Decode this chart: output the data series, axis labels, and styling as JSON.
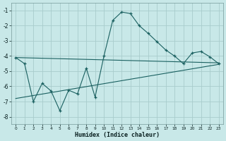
{
  "xlabel": "Humidex (Indice chaleur)",
  "bg_color": "#c8e8e8",
  "grid_color": "#a8cccc",
  "line_color": "#1a6060",
  "ylim": [
    -8.5,
    -0.5
  ],
  "xlim": [
    -0.5,
    23.5
  ],
  "yticks": [
    -8,
    -7,
    -6,
    -5,
    -4,
    -3,
    -2,
    -1
  ],
  "xtick_labels": [
    "0",
    "1",
    "2",
    "3",
    "4",
    "5",
    "6",
    "7",
    "8",
    "9",
    "10",
    "11",
    "12",
    "13",
    "14",
    "15",
    "16",
    "17",
    "18",
    "19",
    "20",
    "21",
    "22",
    "23"
  ],
  "main_x": [
    0,
    1,
    2,
    3,
    4,
    5,
    6,
    7,
    8,
    9,
    10,
    11,
    12,
    13,
    14,
    15,
    16,
    17,
    18,
    19,
    20,
    21,
    22,
    23
  ],
  "main_y": [
    -4.1,
    -4.5,
    -7.0,
    -5.8,
    -6.3,
    -7.6,
    -6.25,
    -6.5,
    -4.8,
    -6.7,
    -4.0,
    -1.65,
    -1.1,
    -1.2,
    -2.0,
    -2.5,
    -3.05,
    -3.6,
    -4.0,
    -4.5,
    -3.8,
    -3.7,
    -4.05,
    -4.5
  ],
  "trend1_x": [
    0,
    23
  ],
  "trend1_y": [
    -4.1,
    -4.45
  ],
  "trend2_x": [
    0,
    23
  ],
  "trend2_y": [
    -6.8,
    -4.55
  ],
  "figsize": [
    3.2,
    2.0
  ],
  "dpi": 100
}
